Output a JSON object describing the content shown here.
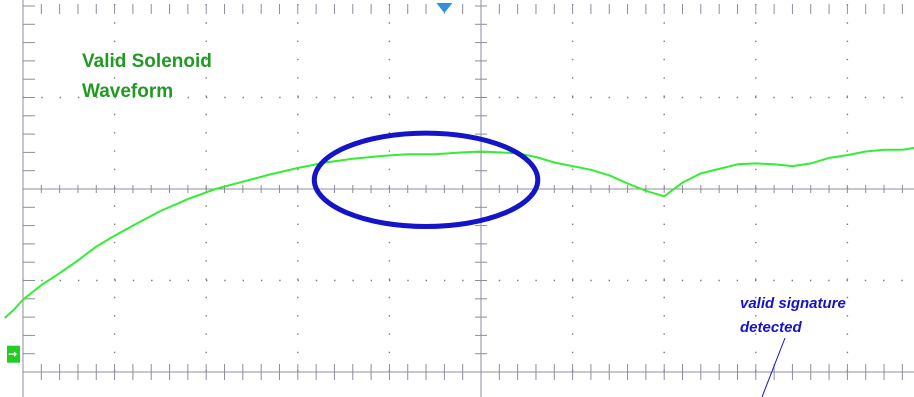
{
  "chart_data": {
    "type": "line",
    "title_lines": [
      "Valid Solenoid",
      "Waveform"
    ],
    "xlabel": "",
    "ylabel": "",
    "grid": true,
    "grid_divisions": {
      "x": 10,
      "y": 4
    },
    "xlim": [
      0,
      10
    ],
    "ylim": [
      0,
      4
    ],
    "annotation": {
      "lines": [
        "valid signature",
        "detected"
      ],
      "target": "ellipse"
    },
    "highlight_ellipse": {
      "center": [
        4.4,
        2.1
      ],
      "radii": [
        1.22,
        0.51
      ]
    },
    "ground_marker": {
      "symbol": "→",
      "level": 0.2
    },
    "trigger_marker": {
      "shape": "triangle-down",
      "x": 4.6
    },
    "series": [
      {
        "color": "#33ee33",
        "x": [
          -0.2,
          -0.1,
          0.0,
          0.2,
          0.4,
          0.6,
          0.8,
          1.0,
          1.2,
          1.5,
          1.8,
          2.1,
          2.4,
          2.7,
          3.0,
          3.3,
          3.6,
          3.9,
          4.2,
          4.5,
          4.8,
          5.0,
          5.2,
          5.4,
          5.6,
          5.8,
          6.0,
          6.2,
          6.4,
          6.6,
          6.8,
          7.0,
          7.2,
          7.4,
          7.6,
          7.8,
          8.0,
          8.2,
          8.4,
          8.6,
          8.8,
          9.0,
          9.2,
          9.4,
          9.6,
          9.8
        ],
        "y": [
          0.59,
          0.68,
          0.79,
          0.95,
          1.08,
          1.22,
          1.37,
          1.49,
          1.6,
          1.76,
          1.89,
          2.0,
          2.08,
          2.16,
          2.23,
          2.29,
          2.33,
          2.36,
          2.38,
          2.38,
          2.4,
          2.41,
          2.4,
          2.39,
          2.35,
          2.29,
          2.25,
          2.21,
          2.15,
          2.06,
          1.98,
          1.92,
          2.07,
          2.17,
          2.22,
          2.27,
          2.28,
          2.27,
          2.25,
          2.28,
          2.34,
          2.37,
          2.41,
          2.43,
          2.43,
          2.46
        ]
      }
    ]
  }
}
